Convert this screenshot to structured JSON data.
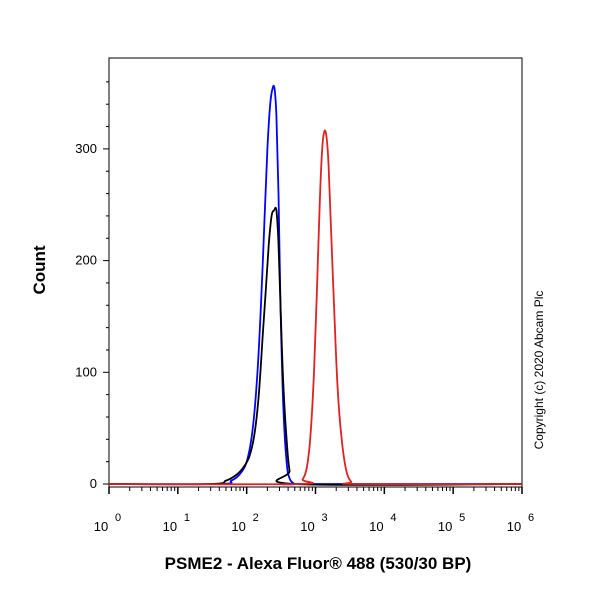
{
  "chart_data": {
    "type": "line",
    "xscale": "log",
    "xlim": [
      1,
      1000000
    ],
    "ylim": [
      0,
      370
    ],
    "xlabel": "PSME2 - Alexa Fluor® 488 (530/30 BP)",
    "ylabel": "Count",
    "x_ticks": [
      {
        "base": "10",
        "exp": "0"
      },
      {
        "base": "10",
        "exp": "1"
      },
      {
        "base": "10",
        "exp": "2"
      },
      {
        "base": "10",
        "exp": "3"
      },
      {
        "base": "10",
        "exp": "4"
      },
      {
        "base": "10",
        "exp": "5"
      },
      {
        "base": "10",
        "exp": "6"
      }
    ],
    "y_ticks": [
      {
        "value": 0,
        "label": "0"
      },
      {
        "value": 100,
        "label": "100"
      },
      {
        "value": 200,
        "label": "200"
      },
      {
        "value": 300,
        "label": "300"
      }
    ],
    "annotation": "Copyright (c) 2020 Abcam Plc",
    "grid": false,
    "series": [
      {
        "color": "#0000ff",
        "x": [
          1,
          40,
          60,
          80,
          100,
          120,
          140,
          160,
          180,
          200,
          220,
          240,
          255,
          270,
          290,
          310,
          340,
          380,
          420,
          500,
          600,
          1000000
        ],
        "y": [
          0,
          0,
          3,
          9,
          20,
          45,
          90,
          155,
          230,
          300,
          340,
          355,
          353,
          330,
          260,
          160,
          70,
          20,
          5,
          0,
          0,
          0
        ]
      },
      {
        "color": "#000000",
        "x": [
          1,
          30,
          50,
          70,
          90,
          110,
          130,
          150,
          170,
          190,
          210,
          230,
          250,
          270,
          290,
          310,
          340,
          380,
          420,
          500,
          1000000
        ],
        "y": [
          0,
          0,
          3,
          8,
          15,
          25,
          45,
          80,
          130,
          175,
          215,
          240,
          245,
          245,
          215,
          160,
          90,
          40,
          12,
          0,
          0
        ]
      },
      {
        "color": "#dd2222",
        "x": [
          1,
          550,
          650,
          750,
          850,
          950,
          1050,
          1150,
          1250,
          1350,
          1450,
          1550,
          1700,
          1900,
          2100,
          2400,
          2800,
          3300,
          4000,
          1000000
        ],
        "y": [
          0,
          0,
          4,
          15,
          45,
          100,
          175,
          250,
          300,
          316,
          310,
          285,
          220,
          145,
          85,
          40,
          12,
          2,
          0,
          0
        ]
      }
    ]
  }
}
